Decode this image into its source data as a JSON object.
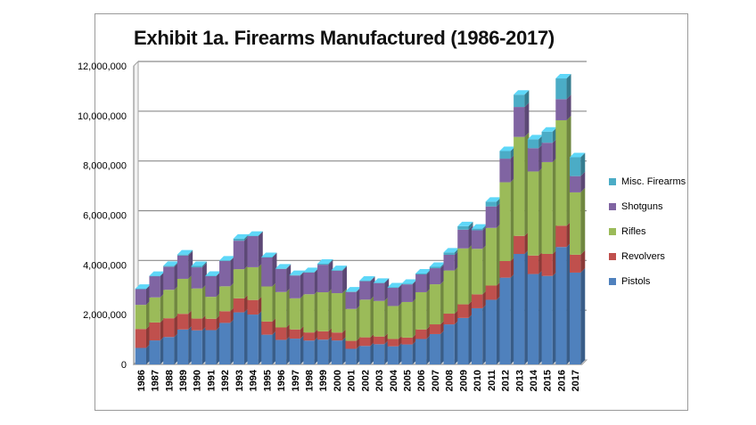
{
  "chart_data": {
    "type": "bar",
    "stacked": true,
    "title": "Exhibit 1a. Firearms Manufactured (1986-2017)",
    "xlabel": "",
    "ylabel": "",
    "ylim": [
      0,
      12000000
    ],
    "yticks": [
      "0",
      "2,000,000",
      "4,000,000",
      "6,000,000",
      "8,000,000",
      "10,000,000",
      "12,000,000"
    ],
    "grid": true,
    "legend_position": "right",
    "categories": [
      "1986",
      "1987",
      "1988",
      "1989",
      "1990",
      "1991",
      "1992",
      "1993",
      "1994",
      "1995",
      "1996",
      "1997",
      "1998",
      "1999",
      "2000",
      "2001",
      "2002",
      "2003",
      "2004",
      "2005",
      "2006",
      "2007",
      "2008",
      "2009",
      "2010",
      "2011",
      "2012",
      "2013",
      "2014",
      "2015",
      "2016",
      "2017"
    ],
    "series": [
      {
        "name": "Pistols",
        "color": "#4f81bd",
        "values": [
          662973,
          964561,
          1101011,
          1404753,
          1371427,
          1378252,
          1669537,
          2093362,
          2004298,
          1195284,
          987528,
          1036077,
          960365,
          995446,
          962901,
          626836,
          741514,
          811660,
          728511,
          803425,
          1021260,
          1219664,
          1609381,
          1868258,
          2258450,
          2598133,
          3487883,
          4441726,
          3633454,
          3557199,
          4720075,
          3691010
        ]
      },
      {
        "name": "Revolvers",
        "color": "#c0504d",
        "values": [
          761414,
          722512,
          754744,
          628573,
          470495,
          456966,
          469413,
          562292,
          586450,
          527664,
          498944,
          370428,
          324390,
          335784,
          318960,
          320143,
          347070,
          309364,
          294099,
          274205,
          385069,
          391334,
          431753,
          547195,
          558927,
          572857,
          667357,
          725282,
          744047,
          885259,
          856291,
          720917
        ]
      },
      {
        "name": "Rifles",
        "color": "#9bbb59",
        "values": [
          970507,
          1007661,
          1144707,
          1407400,
          1211664,
          883482,
          1001833,
          1173694,
          1316607,
          1411120,
          1424315,
          1251341,
          1535690,
          1569685,
          1583042,
          1284554,
          1515286,
          1430324,
          1325138,
          1431372,
          1496505,
          1610923,
          1734536,
          2248851,
          1830556,
          2318088,
          3168206,
          3979570,
          3379549,
          3691799,
          4239335,
          2504092
        ]
      },
      {
        "name": "Shotguns",
        "color": "#8064a2",
        "values": [
          641482,
          857949,
          928070,
          935541,
          848948,
          828426,
          1018204,
          1144940,
          1254926,
          1173645,
          925732,
          915978,
          868639,
          1106995,
          898442,
          679813,
          741325,
          726078,
          731769,
          709313,
          714618,
          645231,
          630710,
          752699,
          743378,
          862401,
          949010,
          1203072,
          935411,
          777273,
          848617,
          653651
        ]
      },
      {
        "name": "Misc. Firearms",
        "color": "#4bacc6",
        "values": [
          4558,
          6980,
          35345,
          42126,
          57434,
          15980,
          16849,
          81349,
          10936,
          8629,
          17920,
          19680,
          24506,
          39837,
          30820,
          21309,
          21700,
          6730,
          19508,
          23179,
          35872,
          55461,
          92564,
          138815,
          67929,
          190407,
          306154,
          495142,
          358165,
          447131,
          833123,
          758634
        ]
      }
    ]
  }
}
